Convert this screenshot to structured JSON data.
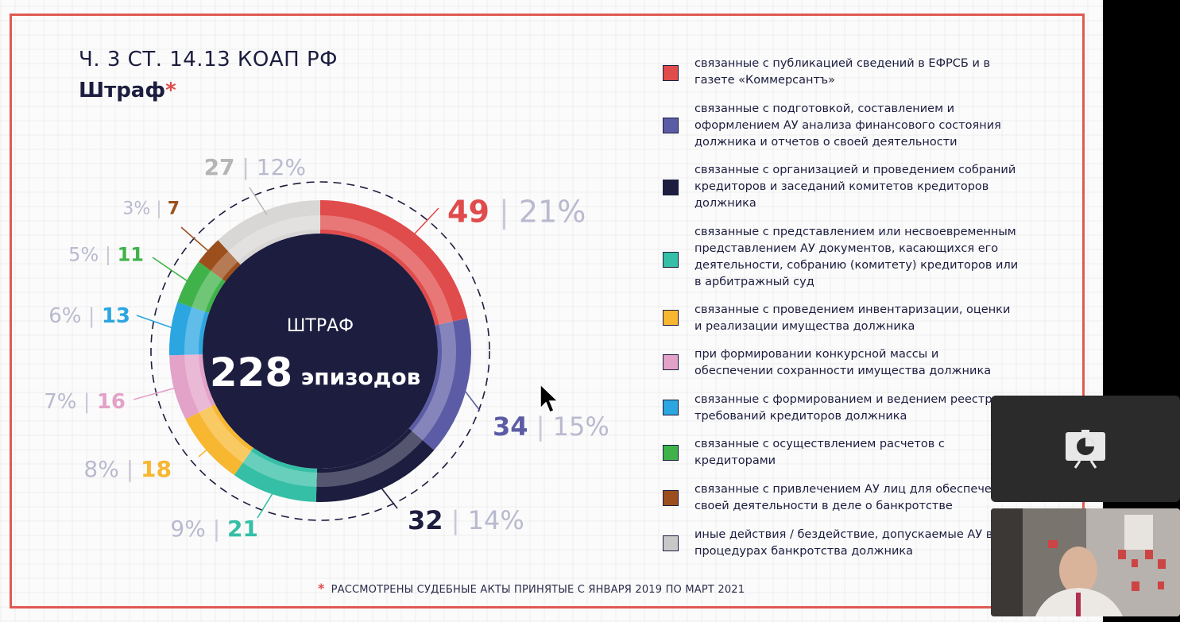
{
  "slide": {
    "title": "Ч. 3 СТ. 14.13 КОАП РФ",
    "subtitle": "Штраф",
    "subtitle_mark": "*",
    "footnote_mark": "*",
    "footnote": "РАССМОТРЕНЫ СУДЕБНЫЕ АКТЫ ПРИНЯТЫЕ С ЯНВАРЯ 2019 ПО МАРТ 2021"
  },
  "chart_data": {
    "type": "donut",
    "center_label": "ШТРАФ",
    "center_value": "228",
    "center_unit": "эпизодов",
    "total": 228,
    "segments": [
      {
        "value": 49,
        "percent": "21%",
        "color": "#e04b4b"
      },
      {
        "value": 34,
        "percent": "15%",
        "color": "#5c5ca6"
      },
      {
        "value": 32,
        "percent": "14%",
        "color": "#1c1d3f"
      },
      {
        "value": 21,
        "percent": "9%",
        "color": "#35bfa6"
      },
      {
        "value": 18,
        "percent": "8%",
        "color": "#f7b731"
      },
      {
        "value": 16,
        "percent": "7%",
        "color": "#e3a2c8"
      },
      {
        "value": 13,
        "percent": "6%",
        "color": "#2ba6e0"
      },
      {
        "value": 11,
        "percent": "5%",
        "color": "#3fb34a"
      },
      {
        "value": 7,
        "percent": "3%",
        "color": "#9c4f1c"
      },
      {
        "value": 27,
        "percent": "12%",
        "color": "#d9d7d5"
      }
    ]
  },
  "legend": [
    {
      "text": "связанные с публикацией сведений в ЕФРСБ и в\nгазете «Коммерсантъ»",
      "color": "#e04b4b"
    },
    {
      "text": "связанные с подготовкой, составлением и\nоформлением АУ анализа финансового состояния\nдолжника и отчетов о своей деятельности",
      "color": "#5c5ca6"
    },
    {
      "text": "связанные с организацией и проведением собраний\nкредиторов и заседаний комитетов кредиторов\nдолжника",
      "color": "#1c1d3f"
    },
    {
      "text": "связанные с представлением или несвоевременным\nпредставлением АУ документов, касающихся его\nдеятельности, собранию (комитету) кредиторов или\nв арбитражный суд",
      "color": "#35bfa6"
    },
    {
      "text": "связанные с проведением инвентаризации, оценки\nи реализации имущества должника",
      "color": "#f7b731"
    },
    {
      "text": "при формировании конкурсной массы и\nобеспечении сохранности имущества должника",
      "color": "#e3a2c8"
    },
    {
      "text": "связанные с формированием и ведением реестра\nтребований кредиторов должника",
      "color": "#2ba6e0"
    },
    {
      "text": "связанные с осуществлением расчетов с\nкредиторами",
      "color": "#3fb34a"
    },
    {
      "text": "связанные с привлечением АУ лиц для обеспечения\nсвоей деятельности в деле о банкротстве",
      "color": "#9c4f1c"
    },
    {
      "text": "иные действия / бездействие, допускаемые АУ в\nпроцедурах банкротства должника",
      "color": "#c8c8c8"
    }
  ],
  "call": {
    "share_icon": "screen-share-icon",
    "video_icon": "participant-video"
  }
}
